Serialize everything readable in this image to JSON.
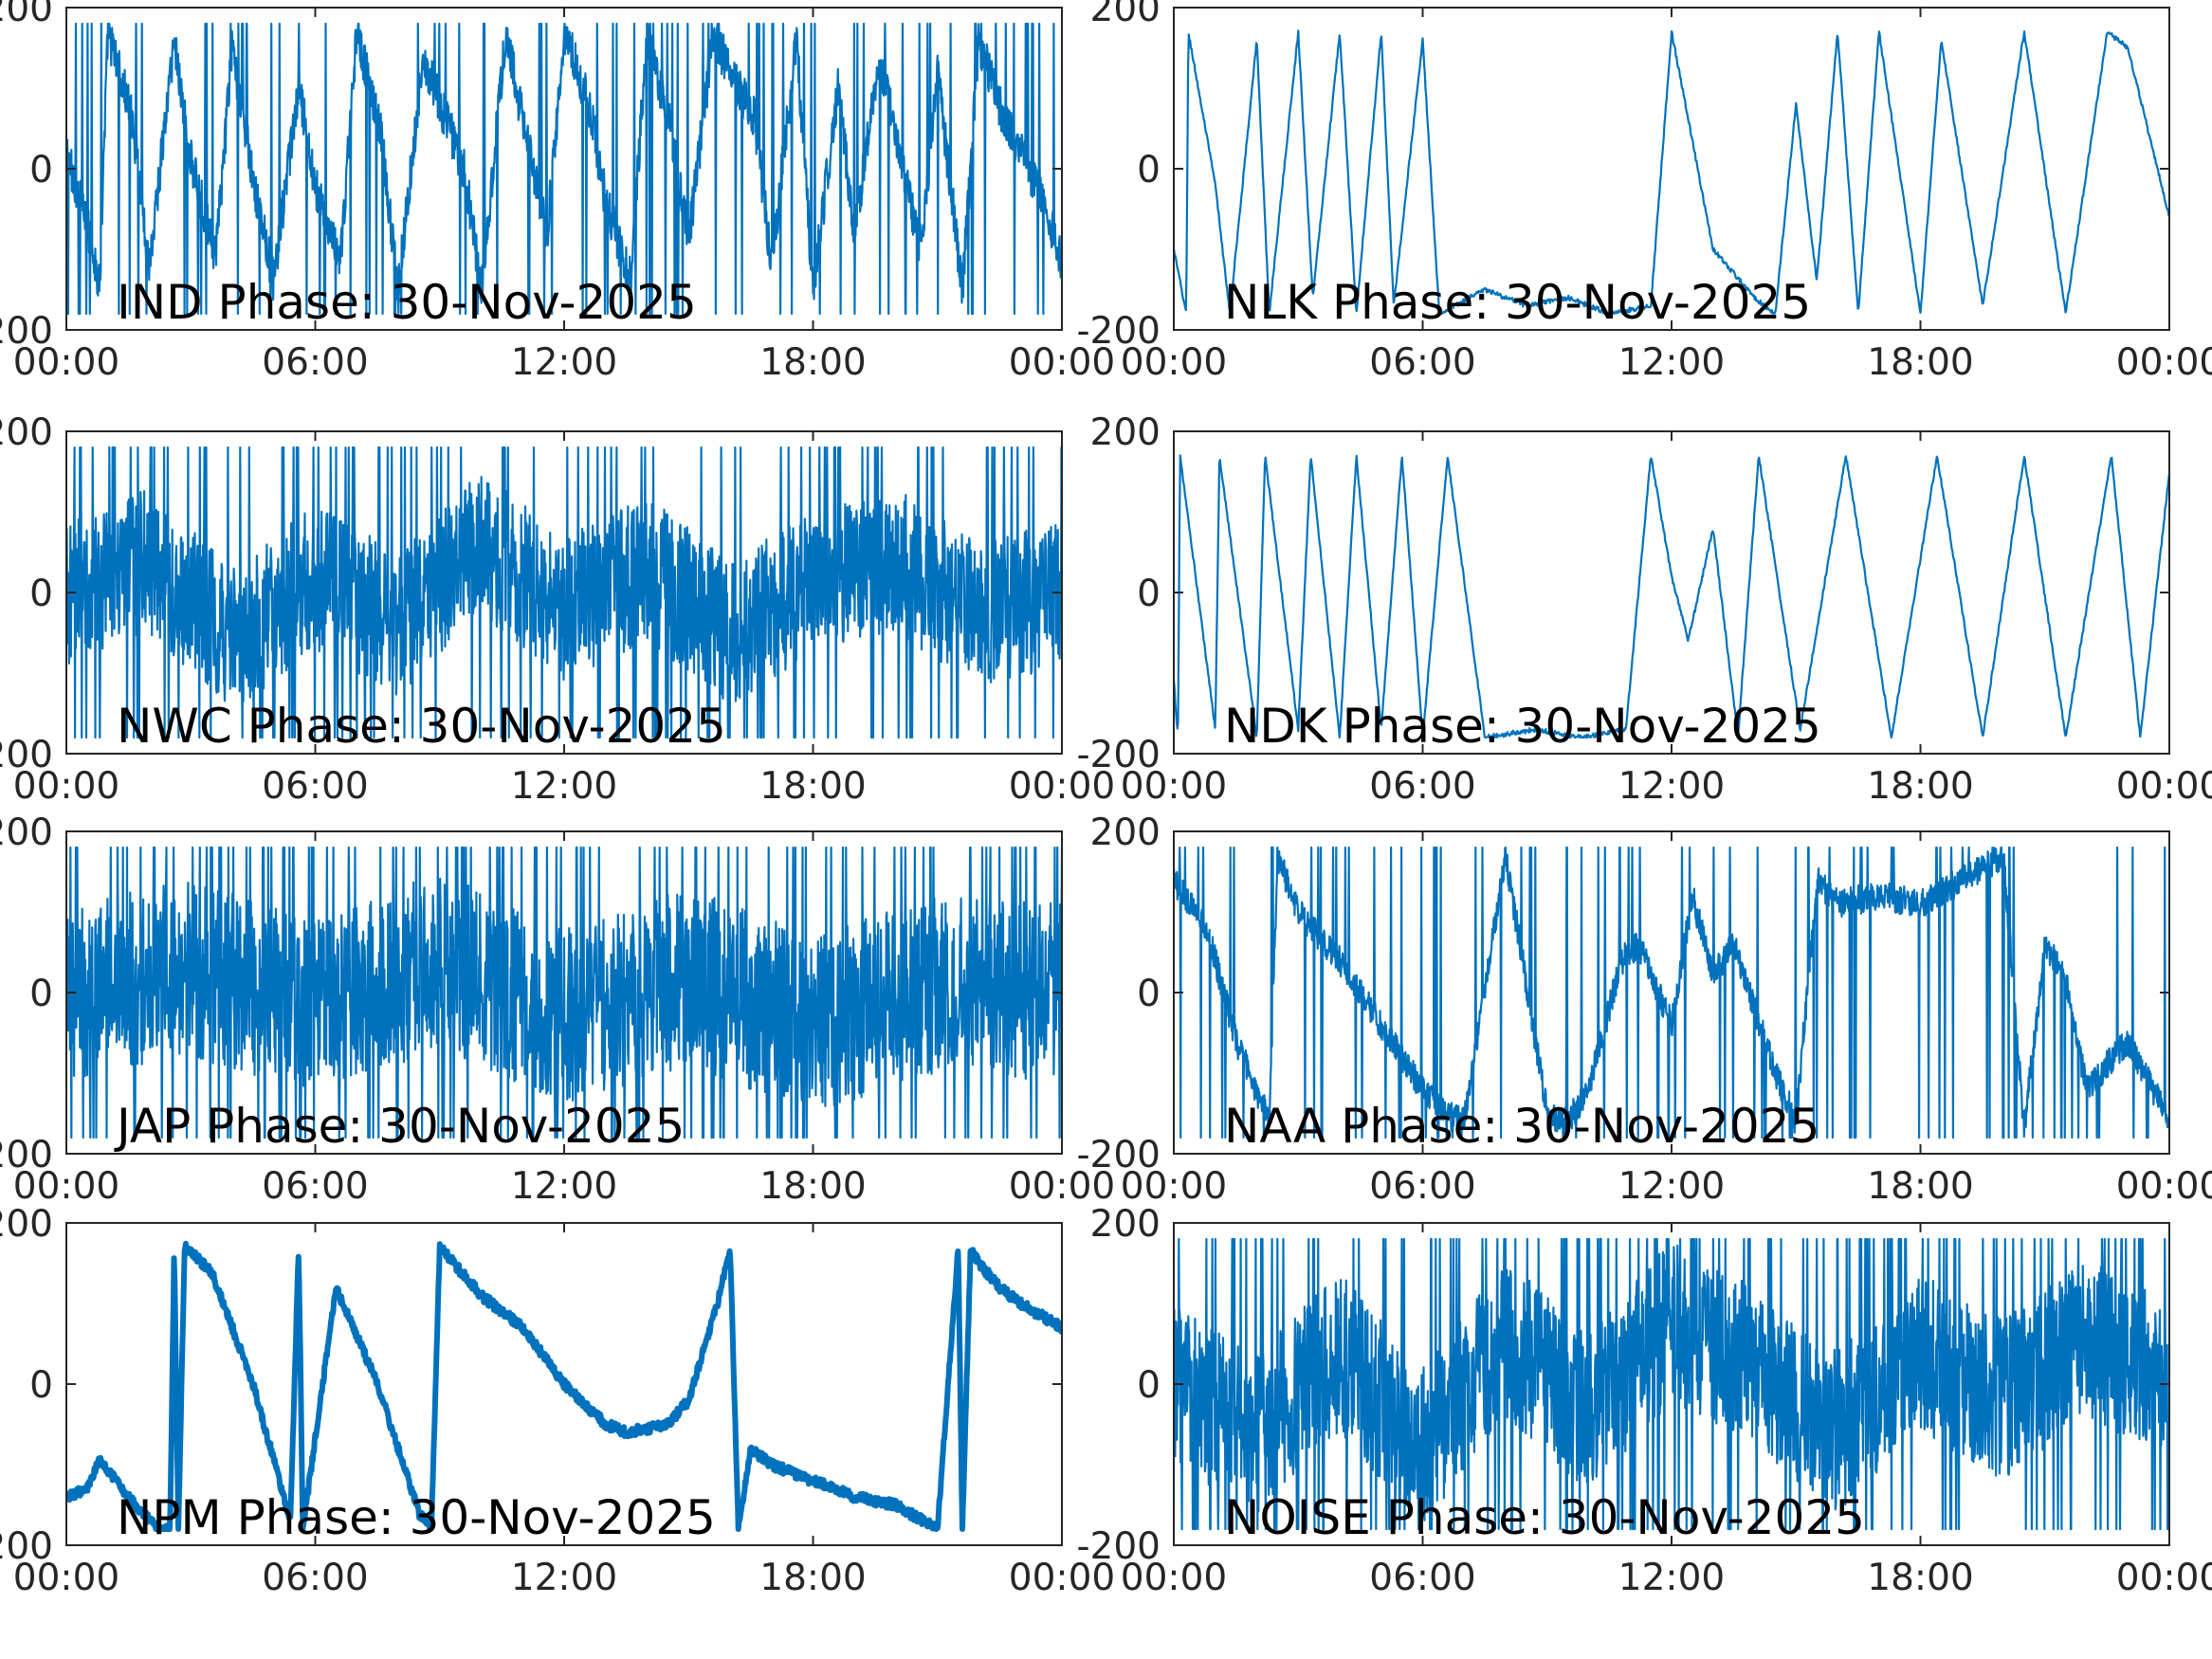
{
  "figure": {
    "background": "#ffffff",
    "line_color": "#0072BD"
  },
  "chart_data": [
    {
      "id": "ind",
      "type": "line",
      "title": "IND Phase: 30-Nov-2025",
      "xticks": [
        "00:00",
        "06:00",
        "12:00",
        "18:00",
        "00:00"
      ],
      "yticks": [
        "-200",
        "0",
        "200"
      ],
      "ylim": [
        -200,
        200
      ],
      "xlim_hours": [
        0,
        24
      ],
      "x_hours": [
        0,
        0.6,
        0.8,
        1.0,
        1.6,
        2.0,
        2.6,
        3.0,
        3.6,
        4.0,
        4.6,
        5.0,
        5.6,
        6.0,
        6.6,
        7.0,
        7.6,
        8.0,
        8.6,
        9.0,
        9.6,
        10.0,
        10.6,
        11.0,
        11.6,
        12.0,
        12.6,
        13.0,
        13.6,
        14.0,
        14.6,
        15.0,
        15.6,
        16.0,
        16.6,
        17.0,
        17.6,
        18.0,
        18.6,
        19.0,
        19.6,
        20.0,
        20.6,
        21.0,
        21.6,
        22.0,
        22.6,
        23.0,
        23.6,
        24.0
      ],
      "values": [
        20,
        -90,
        -150,
        170,
        60,
        -120,
        160,
        10,
        -110,
        150,
        -40,
        -140,
        100,
        -20,
        -120,
        170,
        40,
        -150,
        140,
        80,
        0,
        -150,
        170,
        60,
        -80,
        170,
        80,
        -40,
        -140,
        170,
        40,
        -90,
        170,
        120,
        60,
        -120,
        160,
        -150,
        100,
        -80,
        140,
        40,
        -100,
        120,
        -150,
        160,
        60,
        20,
        -40,
        -120
      ],
      "noise": 28,
      "wraps": 0.6
    },
    {
      "id": "nlk",
      "type": "line",
      "title": "NLK Phase: 30-Nov-2025",
      "xticks": [
        "00:00",
        "06:00",
        "12:00",
        "18:00",
        "00:00"
      ],
      "yticks": [
        "-200",
        "0",
        "200"
      ],
      "ylim": [
        -200,
        200
      ],
      "xlim_hours": [
        0,
        24
      ],
      "x_hours": [
        0,
        0.3,
        0.35,
        1.0,
        1.35,
        2.0,
        2.3,
        3.0,
        3.35,
        4.0,
        4.4,
        5.0,
        5.3,
        6.0,
        6.4,
        7.5,
        8.5,
        9.5,
        10.5,
        11.5,
        12.0,
        13.0,
        14.0,
        14.5,
        15.0,
        15.5,
        16.0,
        16.5,
        17.0,
        18.0,
        18.5,
        19.5,
        20.5,
        21.5,
        22.5,
        23.0,
        24.0
      ],
      "values": [
        -100,
        -180,
        170,
        -20,
        -180,
        160,
        -180,
        170,
        -160,
        170,
        -180,
        170,
        -170,
        160,
        -180,
        -150,
        -170,
        -160,
        -180,
        -170,
        170,
        -100,
        -160,
        -180,
        80,
        -140,
        170,
        -180,
        170,
        -180,
        160,
        -170,
        170,
        -180,
        170,
        150,
        -60
      ],
      "noise": 3,
      "wraps": 0,
      "sawtooth": true
    },
    {
      "id": "nwc",
      "type": "line",
      "title": "NWC Phase: 30-Nov-2025",
      "xticks": [
        "00:00",
        "06:00",
        "12:00",
        "18:00",
        "00:00"
      ],
      "yticks": [
        "-200",
        "0",
        "200"
      ],
      "ylim": [
        -200,
        200
      ],
      "xlim_hours": [
        0,
        24
      ],
      "x_hours": [
        0,
        2,
        4,
        6,
        8,
        10,
        12,
        14,
        16,
        18,
        20,
        22,
        24
      ],
      "values": [
        0,
        40,
        -60,
        20,
        -40,
        60,
        -20,
        30,
        -50,
        10,
        40,
        -30,
        0
      ],
      "noise": 90,
      "wraps": 0.85
    },
    {
      "id": "ndk",
      "type": "line",
      "title": "NDK Phase: 30-Nov-2025",
      "xticks": [
        "00:00",
        "06:00",
        "12:00",
        "18:00",
        "00:00"
      ],
      "yticks": [
        "-200",
        "0",
        "200"
      ],
      "ylim": [
        -200,
        200
      ],
      "xlim_hours": [
        0,
        24
      ],
      "x_hours": [
        0,
        0.1,
        0.15,
        1.0,
        1.1,
        2.0,
        2.2,
        3.0,
        3.3,
        4.0,
        4.4,
        5.0,
        5.5,
        6.0,
        6.6,
        7.5,
        8.7,
        9.8,
        10.9,
        11.5,
        12.0,
        12.4,
        13.0,
        13.6,
        14.1,
        15.1,
        16.2,
        17.3,
        18.4,
        19.5,
        20.5,
        21.5,
        22.6,
        23.3,
        24.0
      ],
      "values": [
        -110,
        -180,
        170,
        -170,
        170,
        -180,
        170,
        -170,
        170,
        -180,
        170,
        -170,
        170,
        -180,
        170,
        -180,
        -170,
        -180,
        -170,
        170,
        20,
        -60,
        80,
        -180,
        170,
        -170,
        170,
        -180,
        170,
        -180,
        170,
        -180,
        170,
        -180,
        150
      ],
      "noise": 3,
      "wraps": 0,
      "sawtooth": true
    },
    {
      "id": "jap",
      "type": "line",
      "title": "JAP Phase: 30-Nov-2025",
      "xticks": [
        "00:00",
        "06:00",
        "12:00",
        "18:00",
        "00:00"
      ],
      "yticks": [
        "-200",
        "0",
        "200"
      ],
      "ylim": [
        -200,
        200
      ],
      "xlim_hours": [
        0,
        24
      ],
      "x_hours": [
        0,
        3,
        6,
        9,
        12,
        15,
        18,
        21,
        24
      ],
      "values": [
        0,
        30,
        -20,
        40,
        -30,
        20,
        -40,
        10,
        0
      ],
      "noise": 110,
      "wraps": 0.95
    },
    {
      "id": "naa",
      "type": "line",
      "title": "NAA Phase: 30-Nov-2025",
      "xticks": [
        "00:00",
        "06:00",
        "12:00",
        "18:00",
        "00:00"
      ],
      "yticks": [
        "-200",
        "0",
        "200"
      ],
      "ylim": [
        -200,
        200
      ],
      "xlim_hours": [
        0,
        24
      ],
      "x_hours": [
        0,
        0.8,
        1.5,
        2.3,
        2.5,
        3.0,
        4.0,
        5.0,
        6.0,
        6.5,
        7.0,
        8.0,
        9.0,
        9.5,
        10.0,
        10.8,
        11.2,
        12.0,
        12.5,
        13.0,
        13.5,
        14.0,
        14.5,
        15.0,
        15.5,
        16.0,
        17.0,
        18.0,
        19.0,
        20.0,
        20.5,
        21.0,
        21.5,
        22.0,
        23.0,
        24.0
      ],
      "values": [
        140,
        80,
        -60,
        -160,
        170,
        100,
        40,
        -40,
        -120,
        -150,
        -160,
        170,
        -150,
        -160,
        -120,
        40,
        60,
        -40,
        120,
        20,
        60,
        -20,
        -100,
        -160,
        140,
        110,
        120,
        110,
        140,
        170,
        -170,
        60,
        20,
        -120,
        -60,
        -160
      ],
      "noise": 18,
      "wraps": 0.5
    },
    {
      "id": "npm",
      "type": "line",
      "title": "NPM Phase: 30-Nov-2025",
      "xticks": [
        "00:00",
        "06:00",
        "12:00",
        "18:00",
        "00:00"
      ],
      "yticks": [
        "-200",
        "0",
        "200"
      ],
      "ylim": [
        -200,
        200
      ],
      "xlim_hours": [
        0,
        24
      ],
      "x_hours": [
        0,
        0.5,
        0.8,
        1.5,
        2.2,
        2.5,
        2.6,
        2.7,
        2.85,
        3.5,
        4.5,
        5.4,
        5.6,
        5.7,
        6.5,
        7.5,
        8.5,
        8.8,
        9.0,
        10.0,
        11.0,
        12.0,
        13.0,
        13.5,
        14.0,
        14.5,
        15.0,
        15.7,
        16.0,
        16.2,
        16.5,
        17.0,
        18.0,
        19.0,
        20.0,
        21.0,
        21.5,
        21.6,
        21.8,
        22.0,
        22.5,
        23.0,
        24.0
      ],
      "values": [
        -140,
        -130,
        -95,
        -140,
        -180,
        -180,
        170,
        -180,
        170,
        140,
        0,
        -170,
        170,
        -180,
        120,
        0,
        -160,
        -180,
        170,
        110,
        70,
        0,
        -50,
        -60,
        -55,
        -50,
        -20,
        100,
        170,
        -180,
        -80,
        -100,
        -120,
        -140,
        -150,
        -180,
        170,
        -180,
        170,
        150,
        120,
        100,
        70
      ],
      "noise": 6,
      "wraps": 0,
      "thick": true
    },
    {
      "id": "noise",
      "type": "line",
      "title": "NOISE Phase: 30-Nov-2025",
      "xticks": [
        "00:00",
        "06:00",
        "12:00",
        "18:00",
        "00:00"
      ],
      "yticks": [
        "-200",
        "0",
        "200"
      ],
      "ylim": [
        -200,
        200
      ],
      "xlim_hours": [
        0,
        24
      ],
      "x_hours": [
        0,
        2,
        4,
        6,
        8,
        10,
        12,
        14,
        16,
        18,
        20,
        22,
        24
      ],
      "values": [
        0,
        -60,
        40,
        -80,
        60,
        -40,
        80,
        20,
        -60,
        40,
        -20,
        60,
        0
      ],
      "noise": 100,
      "wraps": 0.85
    }
  ]
}
